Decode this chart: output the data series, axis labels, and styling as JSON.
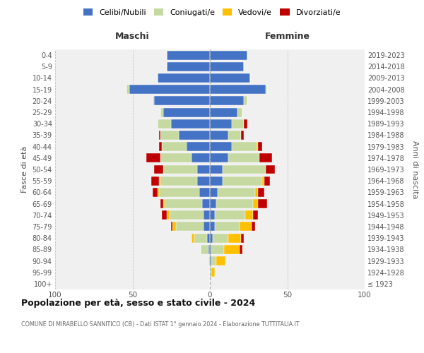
{
  "age_groups": [
    "100+",
    "95-99",
    "90-94",
    "85-89",
    "80-84",
    "75-79",
    "70-74",
    "65-69",
    "60-64",
    "55-59",
    "50-54",
    "45-49",
    "40-44",
    "35-39",
    "30-34",
    "25-29",
    "20-24",
    "15-19",
    "10-14",
    "5-9",
    "0-4"
  ],
  "birth_years": [
    "≤ 1923",
    "1924-1928",
    "1929-1933",
    "1934-1938",
    "1939-1943",
    "1944-1948",
    "1949-1953",
    "1954-1958",
    "1959-1963",
    "1964-1968",
    "1969-1973",
    "1974-1978",
    "1979-1983",
    "1984-1988",
    "1989-1993",
    "1994-1998",
    "1999-2003",
    "2004-2008",
    "2009-2013",
    "2014-2018",
    "2019-2023"
  ],
  "males": {
    "celibe": [
      0,
      0,
      0,
      1,
      2,
      4,
      4,
      5,
      7,
      8,
      8,
      12,
      15,
      20,
      25,
      30,
      36,
      52,
      34,
      28,
      28
    ],
    "coniugato": [
      0,
      0,
      1,
      5,
      8,
      18,
      22,
      24,
      26,
      24,
      22,
      20,
      16,
      12,
      9,
      2,
      1,
      2,
      0,
      0,
      0
    ],
    "vedovo": [
      0,
      0,
      0,
      0,
      2,
      2,
      2,
      1,
      1,
      1,
      0,
      0,
      0,
      0,
      0,
      0,
      0,
      0,
      0,
      0,
      0
    ],
    "divorziato": [
      0,
      0,
      0,
      0,
      0,
      1,
      3,
      2,
      3,
      5,
      6,
      9,
      2,
      1,
      0,
      0,
      0,
      0,
      0,
      0,
      0
    ]
  },
  "females": {
    "nubile": [
      0,
      0,
      1,
      1,
      2,
      3,
      3,
      4,
      5,
      8,
      8,
      12,
      14,
      12,
      14,
      18,
      22,
      36,
      26,
      22,
      24
    ],
    "coniugata": [
      0,
      1,
      3,
      8,
      10,
      16,
      20,
      24,
      24,
      26,
      28,
      20,
      16,
      8,
      8,
      3,
      2,
      1,
      0,
      0,
      0
    ],
    "vedova": [
      0,
      2,
      6,
      10,
      8,
      8,
      5,
      3,
      2,
      1,
      0,
      0,
      1,
      0,
      0,
      0,
      0,
      0,
      0,
      0,
      0
    ],
    "divorziata": [
      0,
      0,
      0,
      2,
      2,
      2,
      3,
      6,
      4,
      4,
      6,
      8,
      3,
      2,
      2,
      0,
      0,
      0,
      0,
      0,
      0
    ]
  },
  "colors": {
    "celibe": "#4472c4",
    "coniugato": "#c5d9a0",
    "vedovo": "#ffc000",
    "divorziato": "#c00000"
  },
  "title": "Popolazione per età, sesso e stato civile - 2024",
  "subtitle": "COMUNE DI MIRABELLO SANNITICO (CB) - Dati ISTAT 1° gennaio 2024 - Elaborazione TUTTITALIA.IT",
  "ylabel_left": "Fasce di età",
  "ylabel_right": "Anni di nascita",
  "xlabel_left": "Maschi",
  "xlabel_right": "Femmine",
  "xlim": 100,
  "legend_labels": [
    "Celibi/Nubili",
    "Coniugati/e",
    "Vedovi/e",
    "Divorziati/e"
  ],
  "bg_color": "#f0f0f0",
  "grid_color": "#c8c8c8"
}
